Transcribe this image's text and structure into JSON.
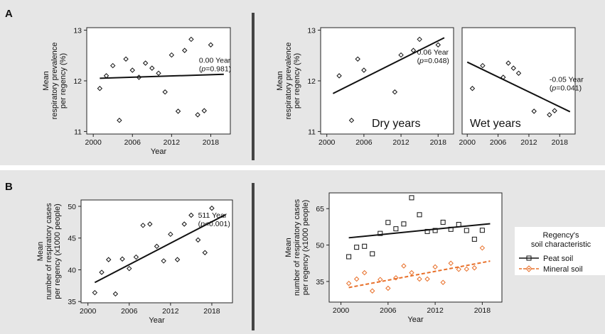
{
  "panels": {
    "A": {
      "letter": "A"
    },
    "B": {
      "letter": "B"
    }
  },
  "colors": {
    "panel_bg": "#e6e6e6",
    "divider": "#444444",
    "peat": "#111111",
    "mineral": "#e8702a"
  },
  "chart_data": [
    {
      "id": "A1",
      "type": "scatter",
      "xlabel": "Year",
      "ylabel": [
        "Mean",
        "respiratory prevalence",
        "per regency (%)"
      ],
      "xlim": [
        1999,
        2021
      ],
      "ylim": [
        10.95,
        13.05
      ],
      "xticks": [
        2000,
        2006,
        2012,
        2018
      ],
      "yticks": [
        11,
        12,
        13
      ],
      "points": [
        [
          2001,
          11.85
        ],
        [
          2002,
          12.1
        ],
        [
          2003,
          12.3
        ],
        [
          2004,
          11.22
        ],
        [
          2005,
          12.43
        ],
        [
          2006,
          12.21
        ],
        [
          2007,
          12.07
        ],
        [
          2008,
          12.35
        ],
        [
          2009,
          12.25
        ],
        [
          2010,
          12.15
        ],
        [
          2011,
          11.78
        ],
        [
          2012,
          12.51
        ],
        [
          2013,
          11.4
        ],
        [
          2014,
          12.6
        ],
        [
          2015,
          12.82
        ],
        [
          2016,
          11.33
        ],
        [
          2017,
          11.41
        ],
        [
          2018,
          12.71
        ]
      ],
      "fit": [
        [
          2001,
          12.05
        ],
        [
          2020,
          12.13
        ]
      ],
      "annotation": [
        "0.00 Year",
        "(p=0.981)"
      ],
      "ann_pos": [
        2016.2,
        12.36
      ]
    },
    {
      "id": "A2",
      "type": "scatter",
      "xlabel": "",
      "ylabel": [
        "Mean",
        "respiratory prevalence",
        "per regency (%)"
      ],
      "xlim": [
        1999,
        2020.5
      ],
      "ylim": [
        10.95,
        13.05
      ],
      "xticks": [
        2000,
        2006,
        2012,
        2018
      ],
      "yticks": [
        11,
        12,
        13
      ],
      "points": [
        [
          2002,
          12.1
        ],
        [
          2004,
          11.22
        ],
        [
          2005,
          12.43
        ],
        [
          2006,
          12.21
        ],
        [
          2011,
          11.78
        ],
        [
          2012,
          12.51
        ],
        [
          2014,
          12.6
        ],
        [
          2015,
          12.82
        ],
        [
          2018,
          12.71
        ]
      ],
      "fit": [
        [
          2001,
          11.75
        ],
        [
          2019,
          12.85
        ]
      ],
      "annotation": [
        "0.06 Year",
        "(p=0.048)"
      ],
      "ann_pos": [
        2014.6,
        12.52
      ],
      "label": "Dry years"
    },
    {
      "id": "A3",
      "type": "scatter",
      "xlabel": "",
      "ylabel": [],
      "xlim": [
        1999,
        2021
      ],
      "ylim": [
        10.95,
        13.05
      ],
      "xticks": [
        2000,
        2006,
        2012,
        2018
      ],
      "yticks": [],
      "points": [
        [
          2001,
          11.85
        ],
        [
          2003,
          12.3
        ],
        [
          2007,
          12.07
        ],
        [
          2008,
          12.35
        ],
        [
          2009,
          12.25
        ],
        [
          2010,
          12.15
        ],
        [
          2013,
          11.4
        ],
        [
          2016,
          11.33
        ],
        [
          2017,
          11.41
        ]
      ],
      "fit": [
        [
          2000,
          12.37
        ],
        [
          2020,
          11.39
        ]
      ],
      "annotation": [
        "-0.05 Year",
        "(p=0.041)"
      ],
      "ann_pos": [
        2016.0,
        11.98
      ],
      "label": "Wet years"
    },
    {
      "id": "B1",
      "type": "scatter",
      "xlabel": "Year",
      "ylabel": [
        "Mean",
        "number of respiratory cases",
        "per regency (x1000 people)"
      ],
      "xlim": [
        1999,
        2021
      ],
      "ylim": [
        34.8,
        51
      ],
      "xticks": [
        2000,
        2006,
        2012,
        2018
      ],
      "yticks": [
        35,
        40,
        45,
        50
      ],
      "points": [
        [
          2001,
          36.4
        ],
        [
          2002,
          39.6
        ],
        [
          2003,
          41.6
        ],
        [
          2004,
          36.2
        ],
        [
          2005,
          41.7
        ],
        [
          2006,
          40.2
        ],
        [
          2007,
          42.0
        ],
        [
          2008,
          47.0
        ],
        [
          2009,
          47.2
        ],
        [
          2010,
          43.7
        ],
        [
          2011,
          41.4
        ],
        [
          2012,
          45.6
        ],
        [
          2013,
          41.6
        ],
        [
          2014,
          47.2
        ],
        [
          2015,
          48.6
        ],
        [
          2016,
          44.7
        ],
        [
          2017,
          42.7
        ],
        [
          2018,
          49.7
        ]
      ],
      "fit": [
        [
          2001,
          38.0
        ],
        [
          2020,
          48.7
        ]
      ],
      "annotation": [
        "511 Year",
        "(p<0.001)"
      ],
      "ann_pos": [
        2016.0,
        48.2
      ]
    },
    {
      "id": "B2",
      "type": "scatter",
      "xlabel": "Year",
      "ylabel": [
        "Mean",
        "number of respiratory cases",
        "per regency (x1000 people)"
      ],
      "xlim": [
        1998.5,
        2020.5
      ],
      "ylim": [
        26.5,
        71.5
      ],
      "xticks": [
        2000,
        2006,
        2012,
        2018
      ],
      "yticks": [
        35,
        50,
        65
      ],
      "series": [
        {
          "name": "Peat soil",
          "color": "#111111",
          "marker": "square",
          "dash": false,
          "points": [
            [
              2001,
              45.2
            ],
            [
              2002,
              49.1
            ],
            [
              2003,
              49.5
            ],
            [
              2004,
              46.4
            ],
            [
              2005,
              54.8
            ],
            [
              2006,
              59.3
            ],
            [
              2007,
              56.7
            ],
            [
              2008,
              58.7
            ],
            [
              2009,
              69.5
            ],
            [
              2010,
              62.5
            ],
            [
              2011,
              55.6
            ],
            [
              2012,
              56.0
            ],
            [
              2013,
              59.4
            ],
            [
              2014,
              56.5
            ],
            [
              2015,
              58.5
            ],
            [
              2016,
              56.0
            ],
            [
              2017,
              52.4
            ],
            [
              2018,
              56.1
            ]
          ],
          "fit": [
            [
              2001,
              53.0
            ],
            [
              2019,
              58.8
            ]
          ]
        },
        {
          "name": "Mineral soil",
          "color": "#e8702a",
          "marker": "diamond",
          "dash": true,
          "points": [
            [
              2001,
              34.2
            ],
            [
              2002,
              36.0
            ],
            [
              2003,
              38.6
            ],
            [
              2004,
              31.1
            ],
            [
              2005,
              35.8
            ],
            [
              2006,
              32.2
            ],
            [
              2007,
              36.5
            ],
            [
              2008,
              41.4
            ],
            [
              2009,
              38.6
            ],
            [
              2010,
              36.0
            ],
            [
              2011,
              36.0
            ],
            [
              2012,
              41.0
            ],
            [
              2013,
              34.6
            ],
            [
              2014,
              42.5
            ],
            [
              2015,
              40.0
            ],
            [
              2016,
              40.1
            ],
            [
              2017,
              40.6
            ],
            [
              2018,
              48.8
            ]
          ],
          "fit": [
            [
              2001,
              32.5
            ],
            [
              2019,
              43.4
            ]
          ]
        }
      ],
      "legend": {
        "title": [
          "Regency's",
          "soil characteristic"
        ],
        "position": "right"
      }
    }
  ]
}
